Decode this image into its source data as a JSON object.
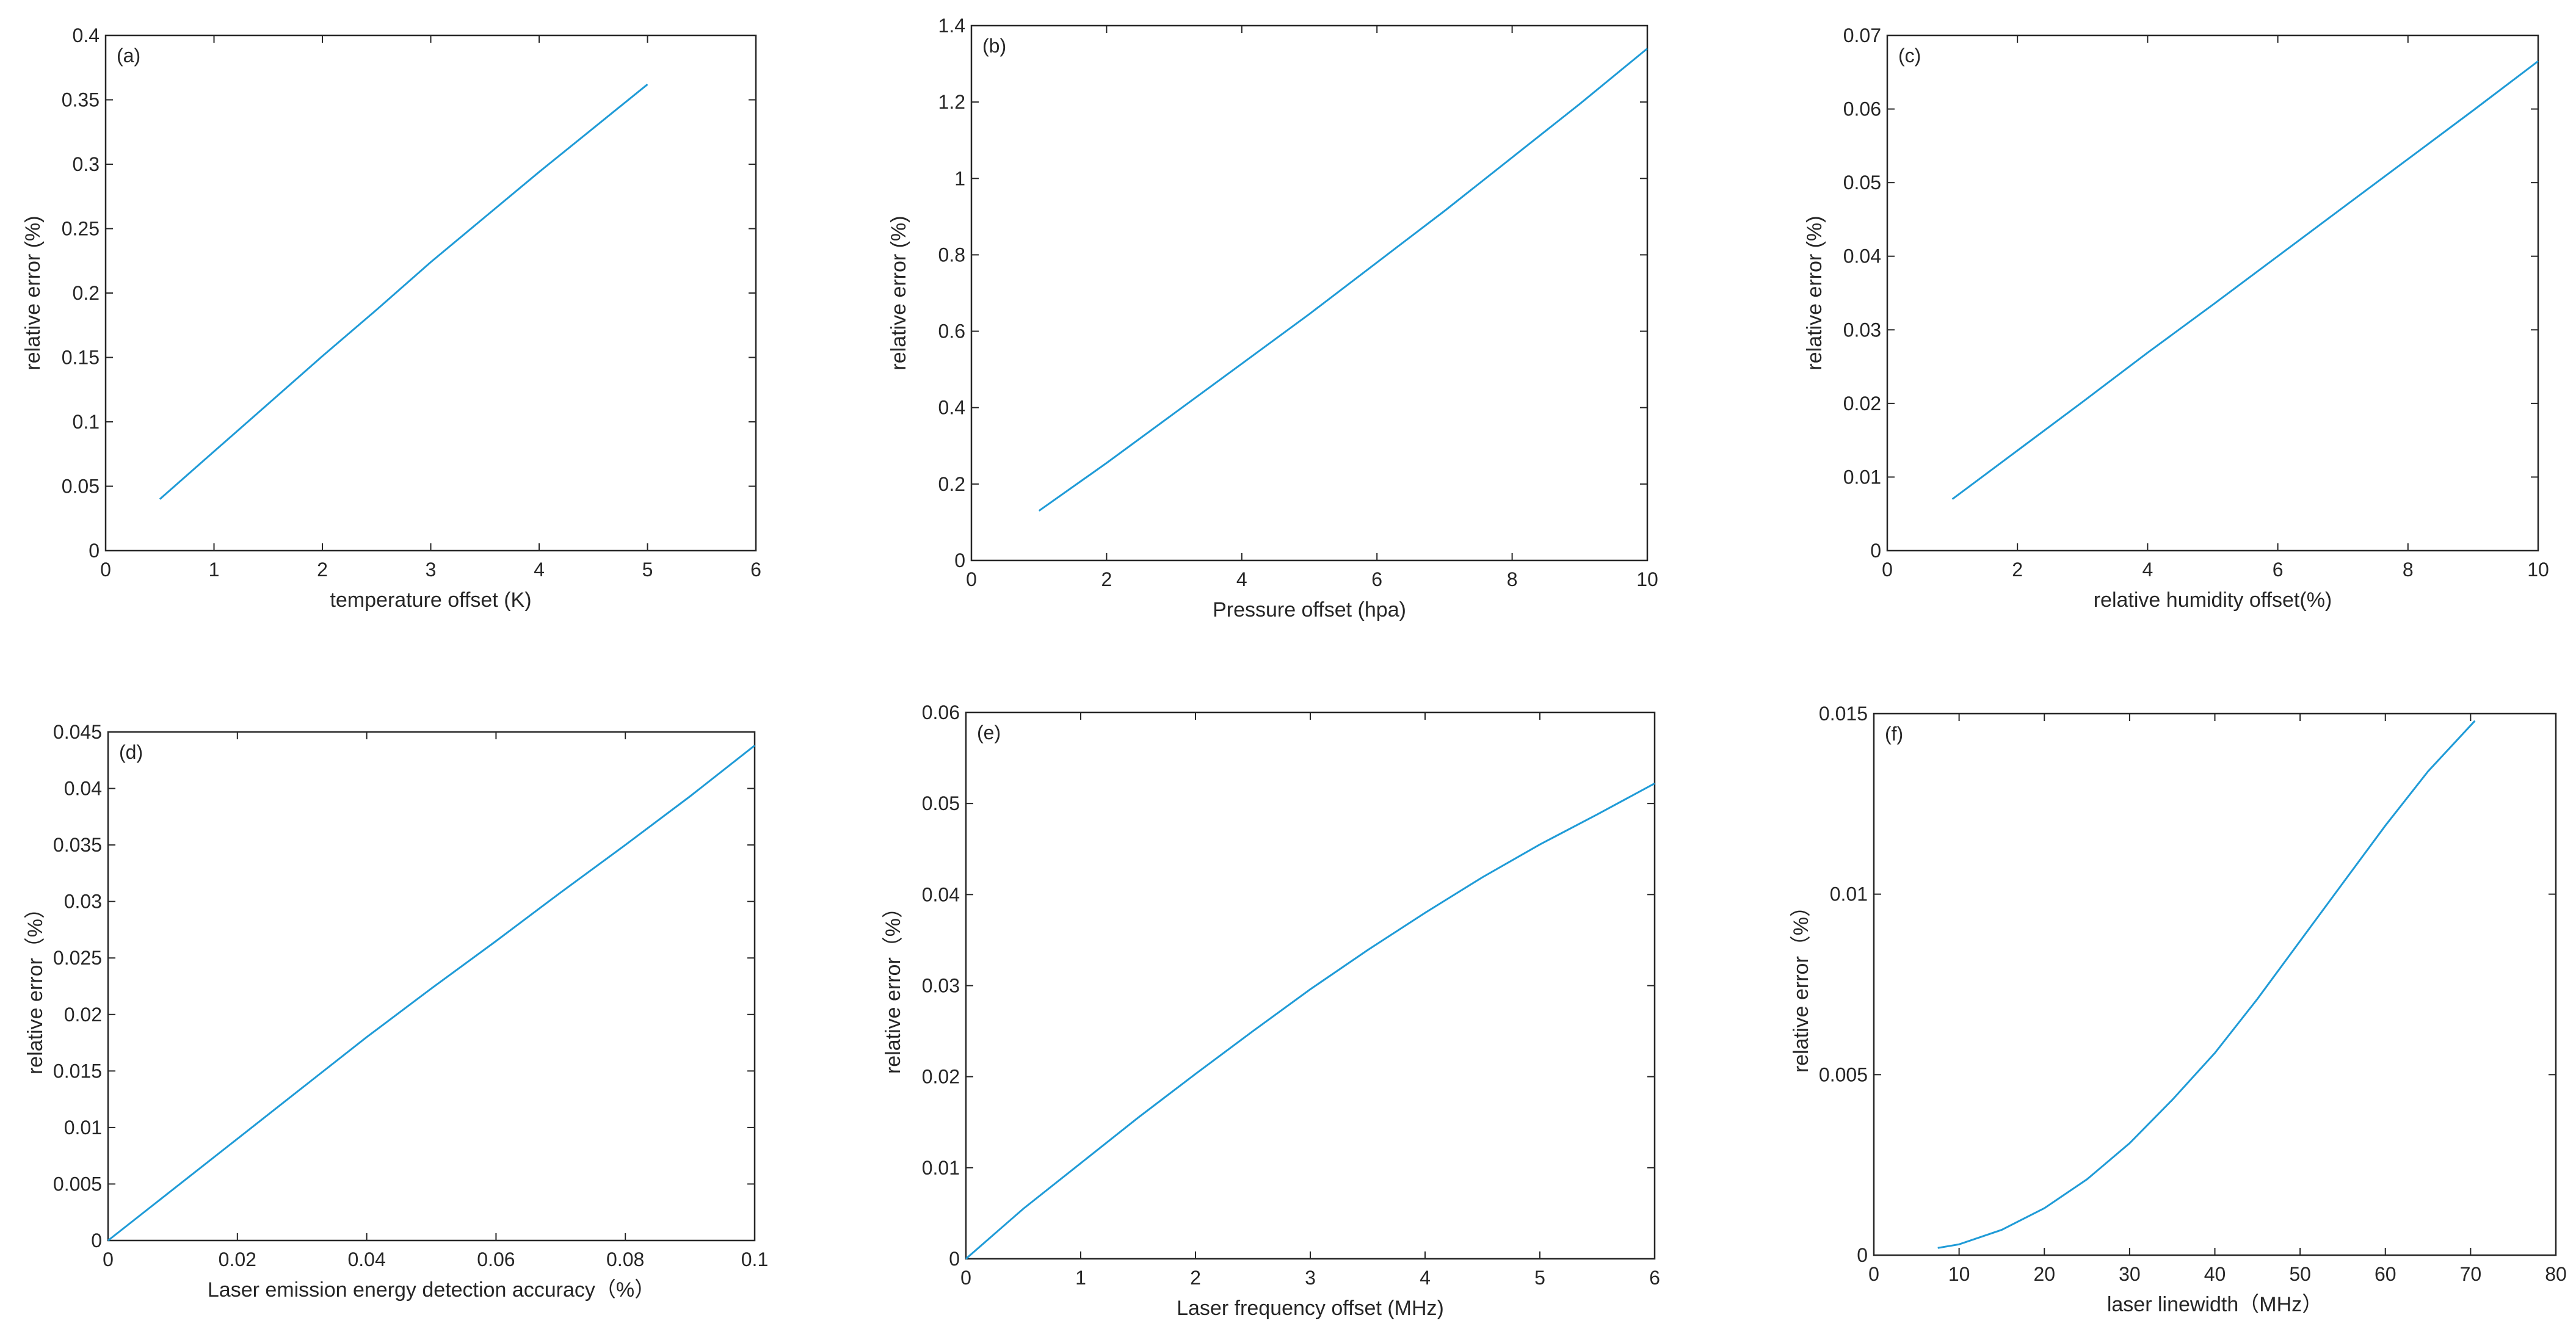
{
  "colors": {
    "line": "#1f9bd7",
    "axis": "#262626",
    "background": "#ffffff"
  },
  "chart_data": [
    {
      "type": "line",
      "panel": "(a)",
      "xlabel": "temperature offset (K)",
      "ylabel": "relative error (%)",
      "xlim": [
        0,
        6
      ],
      "ylim": [
        0,
        0.4
      ],
      "xticks": [
        0,
        1,
        2,
        3,
        4,
        5,
        6
      ],
      "yticks": [
        0,
        0.05,
        0.1,
        0.15,
        0.2,
        0.25,
        0.3,
        0.35,
        0.4
      ],
      "x": [
        0.5,
        1,
        1.5,
        2,
        2.5,
        3,
        3.5,
        4,
        4.5,
        5
      ],
      "y": [
        0.04,
        0.077,
        0.114,
        0.151,
        0.187,
        0.224,
        0.259,
        0.294,
        0.328,
        0.362
      ]
    },
    {
      "type": "line",
      "panel": "(b)",
      "xlabel": "Pressure offset (hpa)",
      "ylabel": "relative error (%)",
      "xlim": [
        0,
        10
      ],
      "ylim": [
        0,
        1.4
      ],
      "xticks": [
        0,
        2,
        4,
        6,
        8,
        10
      ],
      "yticks": [
        0,
        0.2,
        0.4,
        0.6,
        0.8,
        1,
        1.2,
        1.4
      ],
      "x": [
        1,
        2,
        3,
        4,
        5,
        6,
        7,
        8,
        9,
        10
      ],
      "y": [
        0.13,
        0.255,
        0.385,
        0.515,
        0.645,
        0.78,
        0.915,
        1.055,
        1.195,
        1.34
      ]
    },
    {
      "type": "line",
      "panel": "(c)",
      "xlabel": "relative humidity offset(%)",
      "ylabel": "relative error (%)",
      "xlim": [
        0,
        10
      ],
      "ylim": [
        0,
        0.07
      ],
      "xticks": [
        0,
        2,
        4,
        6,
        8,
        10
      ],
      "yticks": [
        0,
        0.01,
        0.02,
        0.03,
        0.04,
        0.05,
        0.06,
        0.07
      ],
      "x": [
        1,
        2,
        3,
        4,
        5,
        6,
        7,
        8,
        9,
        10
      ],
      "y": [
        0.007,
        0.0136,
        0.0202,
        0.0269,
        0.0334,
        0.04,
        0.0466,
        0.0532,
        0.0598,
        0.0665
      ]
    },
    {
      "type": "line",
      "panel": "(d)",
      "xlabel": "Laser emission energy detection accuracy（%）",
      "ylabel": "relative error（%）",
      "xlim": [
        0,
        0.1
      ],
      "ylim": [
        0,
        0.045
      ],
      "xticks": [
        0,
        0.02,
        0.04,
        0.06,
        0.08,
        0.1
      ],
      "yticks": [
        0,
        0.005,
        0.01,
        0.015,
        0.02,
        0.025,
        0.03,
        0.035,
        0.04,
        0.045
      ],
      "x": [
        0,
        0.01,
        0.02,
        0.03,
        0.04,
        0.05,
        0.06,
        0.07,
        0.08,
        0.09,
        0.1
      ],
      "y": [
        0,
        0.0045,
        0.009,
        0.0135,
        0.018,
        0.0223,
        0.0265,
        0.0308,
        0.035,
        0.0393,
        0.0438
      ]
    },
    {
      "type": "line",
      "panel": "(e)",
      "xlabel": "Laser frequency offset (MHz)",
      "ylabel": "relative error（%）",
      "xlim": [
        0,
        6
      ],
      "ylim": [
        0,
        0.06
      ],
      "xticks": [
        0,
        1,
        2,
        3,
        4,
        5,
        6
      ],
      "yticks": [
        0,
        0.01,
        0.02,
        0.03,
        0.04,
        0.05,
        0.06
      ],
      "x": [
        0,
        0.5,
        1,
        1.5,
        2,
        2.5,
        3,
        3.5,
        4,
        4.5,
        5,
        5.5,
        6
      ],
      "y": [
        0,
        0.0055,
        0.0105,
        0.0155,
        0.0203,
        0.025,
        0.0296,
        0.0339,
        0.038,
        0.0419,
        0.0455,
        0.0488,
        0.0522
      ]
    },
    {
      "type": "line",
      "panel": "(f)",
      "xlabel": "laser linewidth（MHz）",
      "ylabel": "relative error（%）",
      "xlim": [
        0,
        80
      ],
      "ylim": [
        0,
        0.015
      ],
      "xticks": [
        0,
        10,
        20,
        30,
        40,
        50,
        60,
        70,
        80
      ],
      "yticks": [
        0,
        0.005,
        0.01,
        0.015
      ],
      "x": [
        7.5,
        10,
        15,
        20,
        25,
        30,
        35,
        40,
        45,
        50,
        55,
        60,
        65,
        70.5
      ],
      "y": [
        0.0002,
        0.0003,
        0.0007,
        0.0013,
        0.0021,
        0.0031,
        0.0043,
        0.0056,
        0.0071,
        0.0087,
        0.0103,
        0.0119,
        0.0134,
        0.0148
      ]
    }
  ]
}
